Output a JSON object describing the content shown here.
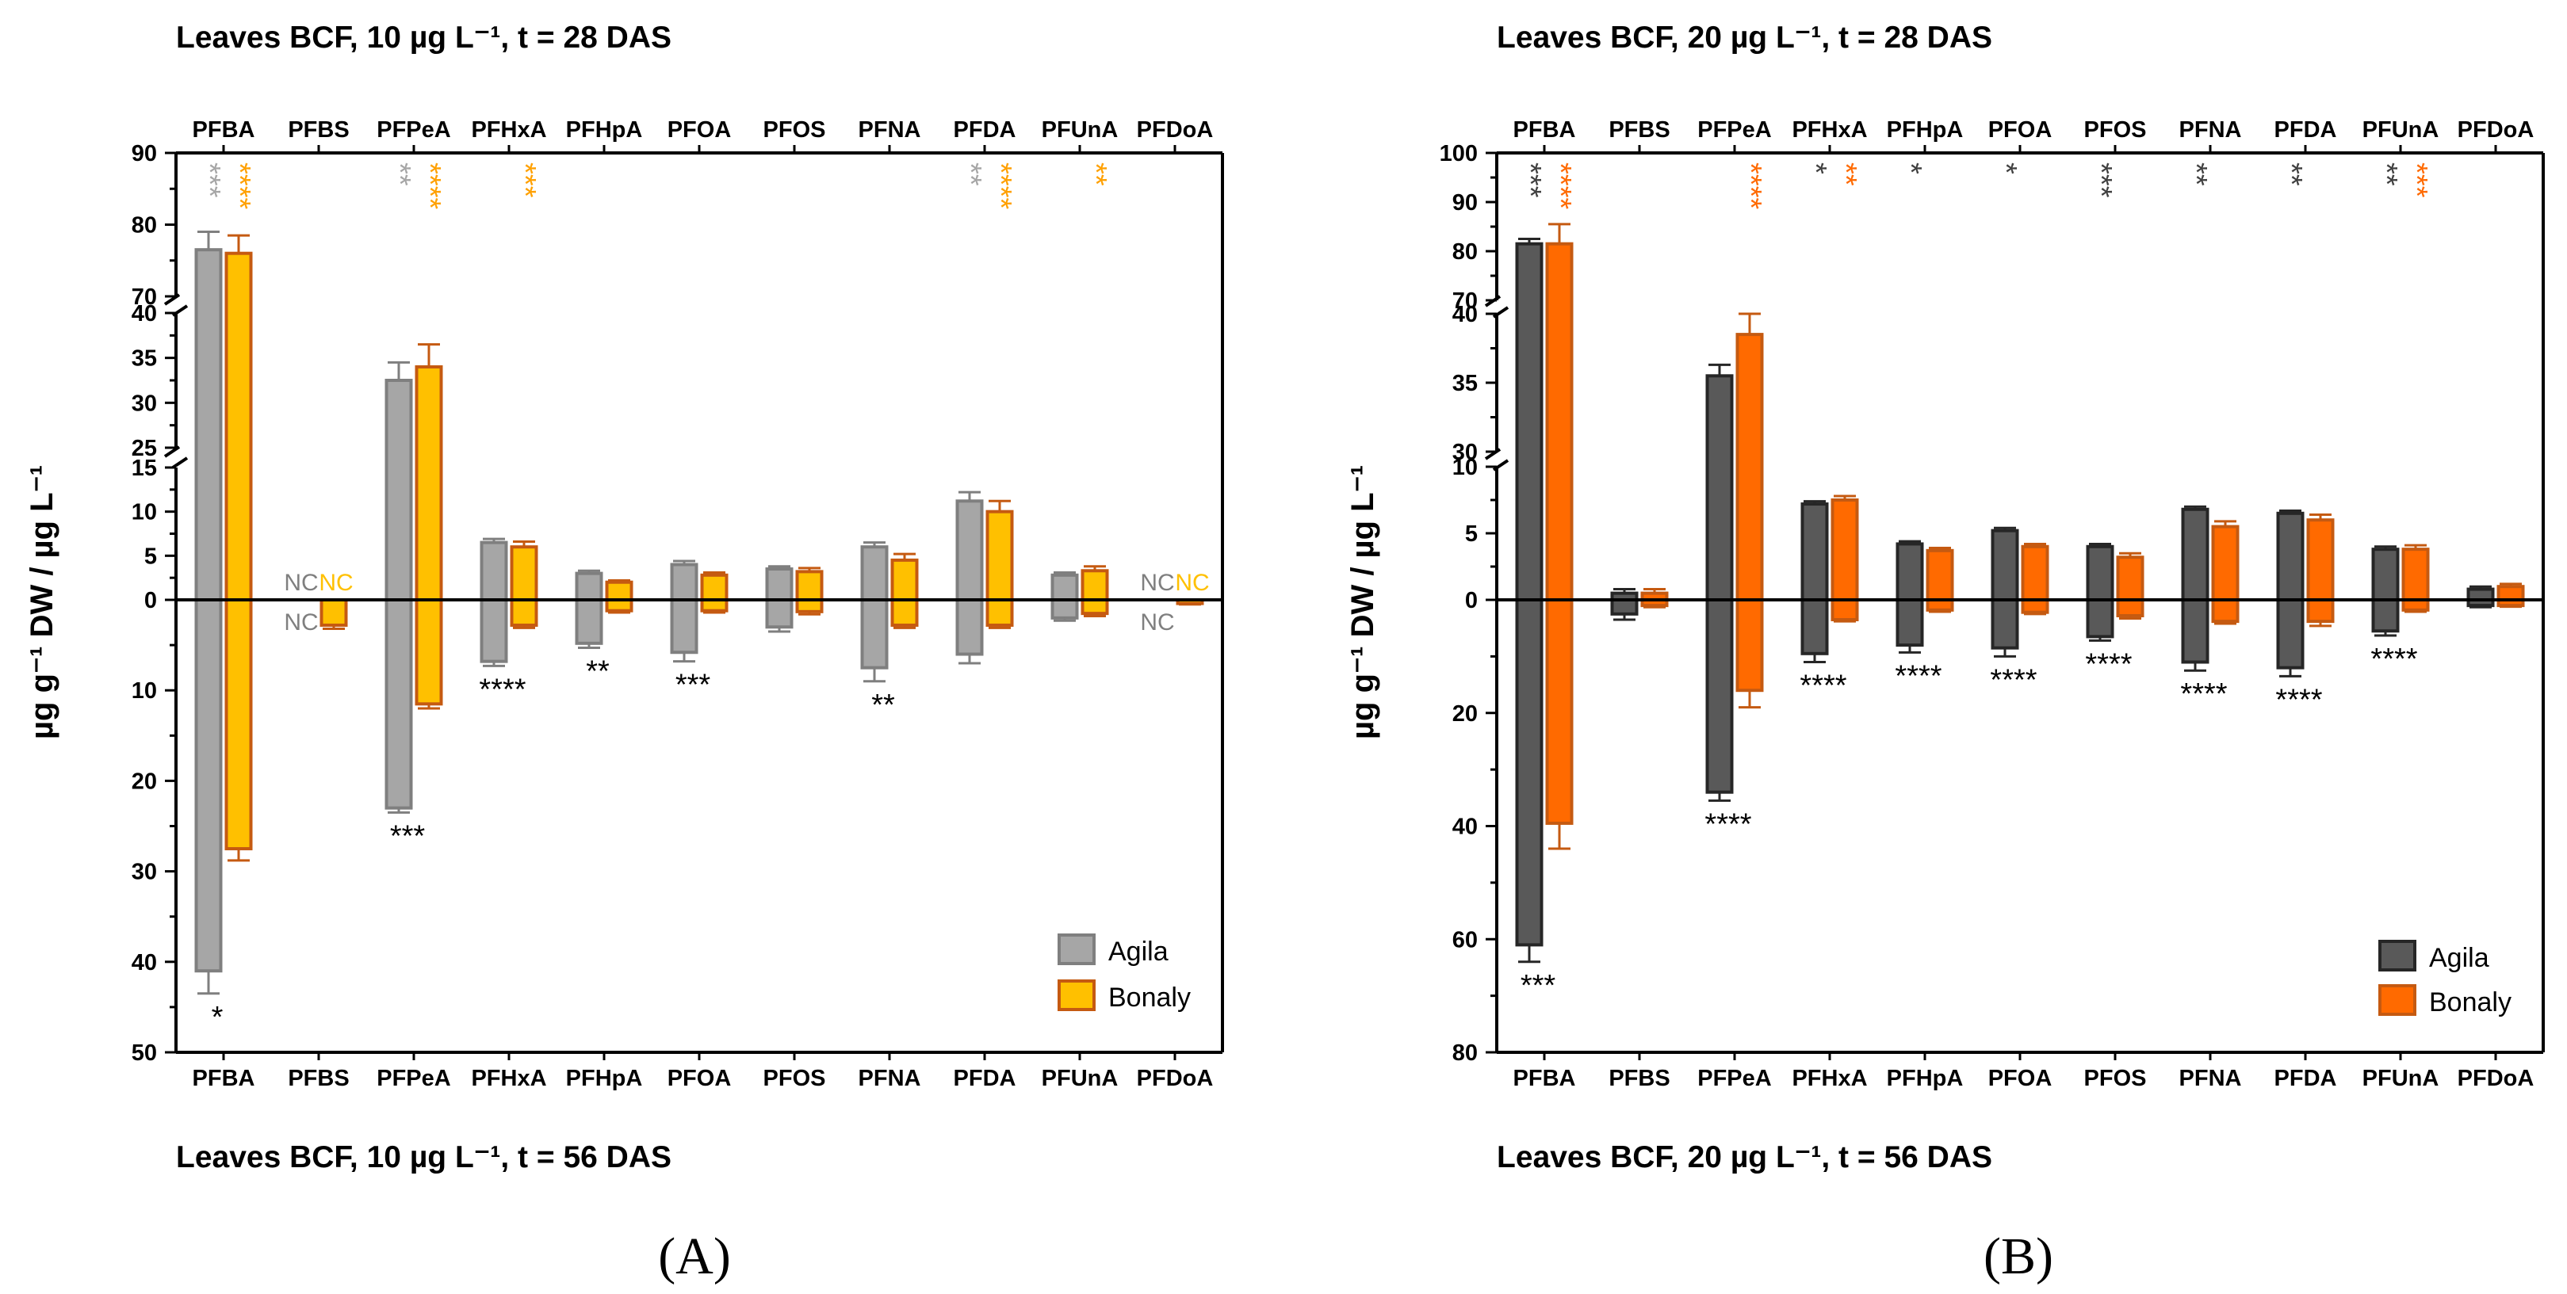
{
  "chart_data": [
    {
      "type": "bar",
      "panel_label": "(A)",
      "title_top": "Leaves BCF, 10 µg L⁻¹, t = 28 DAS",
      "title_bottom": "Leaves BCF, 10 µg L⁻¹, t = 56 DAS",
      "ylabel": "µg g⁻¹ DW / µg L⁻¹",
      "categories": [
        "PFBA",
        "PFBS",
        "PFPeA",
        "PFHxA",
        "PFHpA",
        "PFOA",
        "PFOS",
        "PFNA",
        "PFDA",
        "PFUnA",
        "PFDoA"
      ],
      "axis_top": {
        "segments": [
          {
            "range": [
              25,
              40
            ],
            "ticks": [
              25,
              30,
              35,
              40
            ]
          },
          {
            "range": [
              70,
              90
            ],
            "ticks": [
              70,
              80,
              90
            ]
          }
        ],
        "lower": {
          "range": [
            0,
            15
          ],
          "ticks": [
            0,
            5,
            10,
            15
          ]
        }
      },
      "axis_bottom": {
        "range": [
          0,
          50
        ],
        "ticks": [
          0,
          10,
          20,
          30,
          40,
          50
        ]
      },
      "series": [
        {
          "name": "Agila",
          "color": "#a6a6a6",
          "edge": "#7f7f7f",
          "up_values": [
            76.5,
            null,
            32.5,
            6.5,
            3.0,
            4.0,
            3.5,
            6.0,
            11.2,
            2.8,
            null
          ],
          "up_err": [
            2.5,
            null,
            2.0,
            0.4,
            0.3,
            0.4,
            0.3,
            0.5,
            1.0,
            0.3,
            null
          ],
          "down_values": [
            41,
            null,
            23,
            6.8,
            4.8,
            5.8,
            3.0,
            7.5,
            6.0,
            2.0,
            null
          ],
          "down_err": [
            2.5,
            null,
            0.5,
            0.5,
            0.5,
            1.0,
            0.5,
            1.5,
            1.0,
            0.3,
            null
          ],
          "nc_up": [
            false,
            true,
            false,
            false,
            false,
            false,
            false,
            false,
            false,
            false,
            true
          ],
          "nc_down": [
            false,
            true,
            false,
            false,
            false,
            false,
            false,
            false,
            false,
            false,
            true
          ]
        },
        {
          "name": "Bonaly",
          "color": "#ffc000",
          "edge": "#c55a11",
          "up_values": [
            76.0,
            null,
            34.0,
            6.0,
            2.0,
            2.8,
            3.2,
            4.5,
            10.0,
            3.3,
            null
          ],
          "up_err": [
            2.5,
            null,
            2.5,
            0.6,
            0.2,
            0.3,
            0.4,
            0.7,
            1.2,
            0.5,
            null
          ],
          "down_values": [
            27.5,
            2.8,
            11.5,
            2.8,
            1.2,
            1.2,
            1.3,
            2.8,
            2.8,
            1.5,
            0.4
          ],
          "down_err": [
            1.3,
            0.4,
            0.5,
            0.3,
            0.2,
            0.2,
            0.3,
            0.3,
            0.3,
            0.3,
            0.1
          ],
          "nc_up": [
            false,
            true,
            false,
            false,
            false,
            false,
            false,
            false,
            false,
            false,
            true
          ],
          "nc_down": [
            false,
            false,
            false,
            false,
            false,
            false,
            false,
            false,
            false,
            false,
            false
          ]
        }
      ],
      "nc_label": "NC",
      "significance_top_agila": [
        "***",
        "",
        "**",
        "",
        "",
        "",
        "",
        "",
        "**",
        "",
        ""
      ],
      "significance_top_bonaly": [
        "****",
        "",
        "****",
        "***",
        "",
        "",
        "",
        "",
        "****",
        "**",
        ""
      ],
      "significance_bottom": [
        "*",
        "",
        "***",
        "****",
        "**",
        "***",
        "",
        "**",
        "",
        "",
        ""
      ],
      "legend": [
        "Agila",
        "Bonaly"
      ],
      "legend_position": "bottom-right"
    },
    {
      "type": "bar",
      "panel_label": "(B)",
      "title_top": "Leaves BCF, 20 µg L⁻¹, t = 28 DAS",
      "title_bottom": "Leaves BCF, 20 µg L⁻¹, t = 56 DAS",
      "ylabel": "µg g⁻¹ DW / µg L⁻¹",
      "categories": [
        "PFBA",
        "PFBS",
        "PFPeA",
        "PFHxA",
        "PFHpA",
        "PFOA",
        "PFOS",
        "PFNA",
        "PFDA",
        "PFUnA",
        "PFDoA"
      ],
      "axis_top": {
        "segments": [
          {
            "range": [
              30,
              40
            ],
            "ticks": [
              30,
              35,
              40
            ]
          },
          {
            "range": [
              70,
              100
            ],
            "ticks": [
              70,
              80,
              90,
              100
            ]
          }
        ],
        "lower": {
          "range": [
            0,
            10
          ],
          "ticks": [
            0,
            5,
            10
          ]
        }
      },
      "axis_bottom": {
        "range": [
          0,
          80
        ],
        "ticks": [
          0,
          20,
          40,
          60,
          80
        ]
      },
      "series": [
        {
          "name": "Agila",
          "color": "#595959",
          "edge": "#262626",
          "up_values": [
            81.5,
            0.5,
            35.5,
            7.2,
            4.2,
            5.2,
            4.0,
            6.8,
            6.5,
            3.8,
            0.8
          ],
          "up_err": [
            1.0,
            0.3,
            0.8,
            0.2,
            0.2,
            0.2,
            0.2,
            0.2,
            0.2,
            0.2,
            0.2
          ],
          "down_values": [
            61,
            2.5,
            34,
            9.5,
            8,
            8.5,
            6.5,
            11,
            12,
            5.5,
            1.0
          ],
          "down_err": [
            3.0,
            1.0,
            1.5,
            1.5,
            1.3,
            1.5,
            0.7,
            1.5,
            1.5,
            0.8,
            0.3
          ],
          "nc_up": [
            false,
            false,
            false,
            false,
            false,
            false,
            false,
            false,
            false,
            false,
            false
          ],
          "nc_down": [
            false,
            false,
            false,
            false,
            false,
            false,
            false,
            false,
            false,
            false,
            false
          ]
        },
        {
          "name": "Bonaly",
          "color": "#ff6a00",
          "edge": "#c55a11",
          "up_values": [
            81.5,
            0.5,
            38.5,
            7.5,
            3.7,
            4.0,
            3.2,
            5.5,
            6.0,
            3.8,
            1.0
          ],
          "up_err": [
            4.0,
            0.3,
            1.5,
            0.3,
            0.2,
            0.2,
            0.3,
            0.4,
            0.4,
            0.3,
            0.2
          ],
          "down_values": [
            39.5,
            1.0,
            16,
            3.5,
            1.8,
            2.2,
            2.8,
            3.8,
            3.8,
            1.8,
            1.0
          ],
          "down_err": [
            4.5,
            0.3,
            3.0,
            0.3,
            0.3,
            0.3,
            0.5,
            0.4,
            0.8,
            0.3,
            0.2
          ],
          "nc_up": [
            false,
            false,
            false,
            false,
            false,
            false,
            false,
            false,
            false,
            false,
            false
          ],
          "nc_down": [
            false,
            false,
            false,
            false,
            false,
            false,
            false,
            false,
            false,
            false,
            false
          ]
        }
      ],
      "nc_label": "NC",
      "significance_top_agila": [
        "***",
        "",
        "",
        "*",
        "*",
        "*",
        "***",
        "**",
        "**",
        "**",
        ""
      ],
      "significance_top_bonaly": [
        "****",
        "",
        "****",
        "**",
        "",
        "",
        "",
        "",
        "",
        "***",
        ""
      ],
      "significance_bottom": [
        "***",
        "",
        "****",
        "****",
        "****",
        "****",
        "****",
        "****",
        "****",
        "****",
        ""
      ],
      "legend": [
        "Agila",
        "Bonaly"
      ],
      "legend_position": "bottom-right"
    }
  ]
}
